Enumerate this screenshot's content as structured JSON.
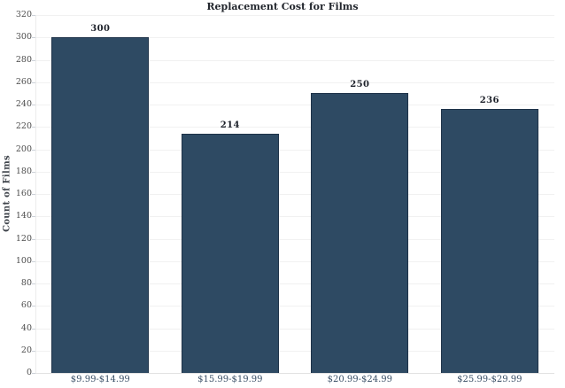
{
  "chart_data": {
    "type": "bar",
    "title": "Replacement Cost for Films",
    "categories": [
      "$9.99-$14.99",
      "$15.99-$19.99",
      "$20.99-$24.99",
      "$25.99-$29.99"
    ],
    "values": [
      300,
      214,
      250,
      236
    ],
    "value_labels": [
      "300",
      "214",
      "250",
      "236"
    ],
    "xlabel": "",
    "ylabel": "Count of Films",
    "ylim": [
      0,
      320
    ],
    "ytick_step": 20,
    "grid": "horizontal-only",
    "legend": "none",
    "colors": {
      "bar_fill": "#2e4a63",
      "bar_border": "#1e3248",
      "gridline": "#f1f1f1",
      "axis_bottom": "#e2e2e2",
      "axis_left": "#ececec",
      "tick_mark": "#ccd1d8",
      "title_text": "#23272e",
      "value_text": "#1e222b",
      "x_tick_text": "#3a4f66",
      "y_tick_text": "#4c4c4c"
    }
  }
}
